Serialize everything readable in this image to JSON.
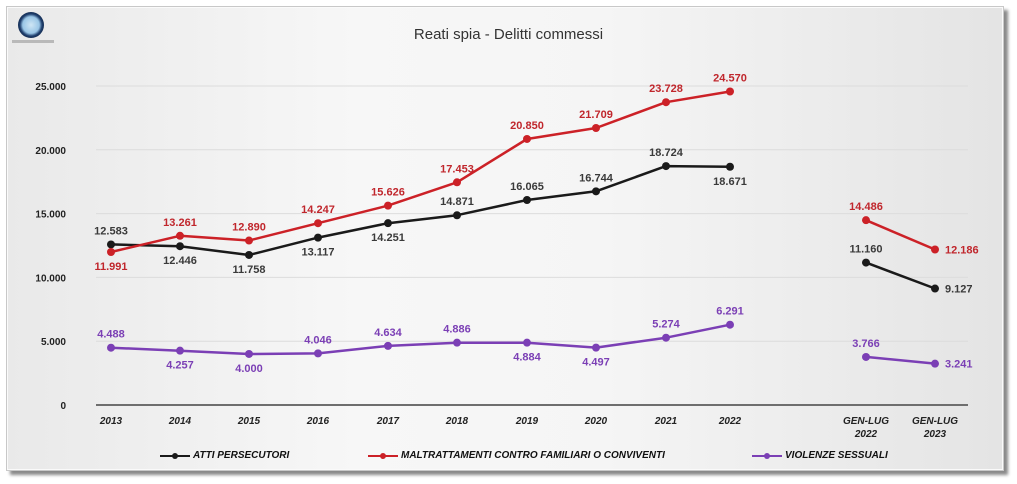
{
  "logo": {
    "icon": "police-badge-logo-icon"
  },
  "chart_data": {
    "type": "line",
    "title": "Reati spia - Delitti commessi",
    "xlabel": "",
    "ylabel": "",
    "ylim": [
      0,
      25000
    ],
    "y_ticks": [
      0,
      5000,
      10000,
      15000,
      20000,
      25000
    ],
    "y_tick_labels": [
      "0",
      "5.000",
      "10.000",
      "15.000",
      "20.000",
      "25.000"
    ],
    "grid": true,
    "legend_position": "bottom",
    "categories": [
      "2013",
      "2014",
      "2015",
      "2016",
      "2017",
      "2018",
      "2019",
      "2020",
      "2021",
      "2022",
      "GEN-LUG 2022",
      "GEN-LUG 2023"
    ],
    "category_labels": [
      [
        "2013"
      ],
      [
        "2014"
      ],
      [
        "2015"
      ],
      [
        "2016"
      ],
      [
        "2017"
      ],
      [
        "2018"
      ],
      [
        "2019"
      ],
      [
        "2020"
      ],
      [
        "2021"
      ],
      [
        "2022"
      ],
      [
        "GEN-LUG",
        "2022"
      ],
      [
        "GEN-LUG",
        "2023"
      ]
    ],
    "segments": [
      [
        0,
        9
      ],
      [
        10,
        11
      ]
    ],
    "series": [
      {
        "name": "ATTI PERSECUTORI",
        "color": "#1a1a1a",
        "label_color": "#3a3a3a",
        "values": [
          12583,
          12446,
          11758,
          13117,
          14251,
          14871,
          16065,
          16744,
          18724,
          18671,
          11160,
          9127
        ],
        "labels": [
          "12.583",
          "12.446",
          "11.758",
          "13.117",
          "14.251",
          "14.871",
          "16.065",
          "16.744",
          "18.724",
          "18.671",
          "11.160",
          "9.127"
        ],
        "label_side": [
          "above",
          "below",
          "below",
          "below",
          "below",
          "above",
          "above",
          "above",
          "above",
          "below",
          "above",
          "right"
        ]
      },
      {
        "name": "MALTRATTAMENTI CONTRO FAMILIARI O CONVIVENTI",
        "color": "#cc2127",
        "label_color": "#c0262c",
        "values": [
          11991,
          13261,
          12890,
          14247,
          15626,
          17453,
          20850,
          21709,
          23728,
          24570,
          14486,
          12186
        ],
        "labels": [
          "11.991",
          "13.261",
          "12.890",
          "14.247",
          "15.626",
          "17.453",
          "20.850",
          "21.709",
          "23.728",
          "24.570",
          "14.486",
          "12.186"
        ],
        "label_side": [
          "below",
          "above",
          "above",
          "above",
          "above",
          "above",
          "above",
          "above",
          "above",
          "above",
          "above",
          "right"
        ]
      },
      {
        "name": "VIOLENZE SESSUALI",
        "color": "#7b3fb5",
        "label_color": "#7b3fb5",
        "values": [
          4488,
          4257,
          4000,
          4046,
          4634,
          4886,
          4884,
          4497,
          5274,
          6291,
          3766,
          3241
        ],
        "labels": [
          "4.488",
          "4.257",
          "4.000",
          "4.046",
          "4.634",
          "4.886",
          "4.884",
          "4.497",
          "5.274",
          "6.291",
          "3.766",
          "3.241"
        ],
        "label_side": [
          "above",
          "below",
          "below",
          "above",
          "above",
          "above",
          "below",
          "below",
          "above",
          "above",
          "above",
          "right"
        ]
      }
    ]
  }
}
